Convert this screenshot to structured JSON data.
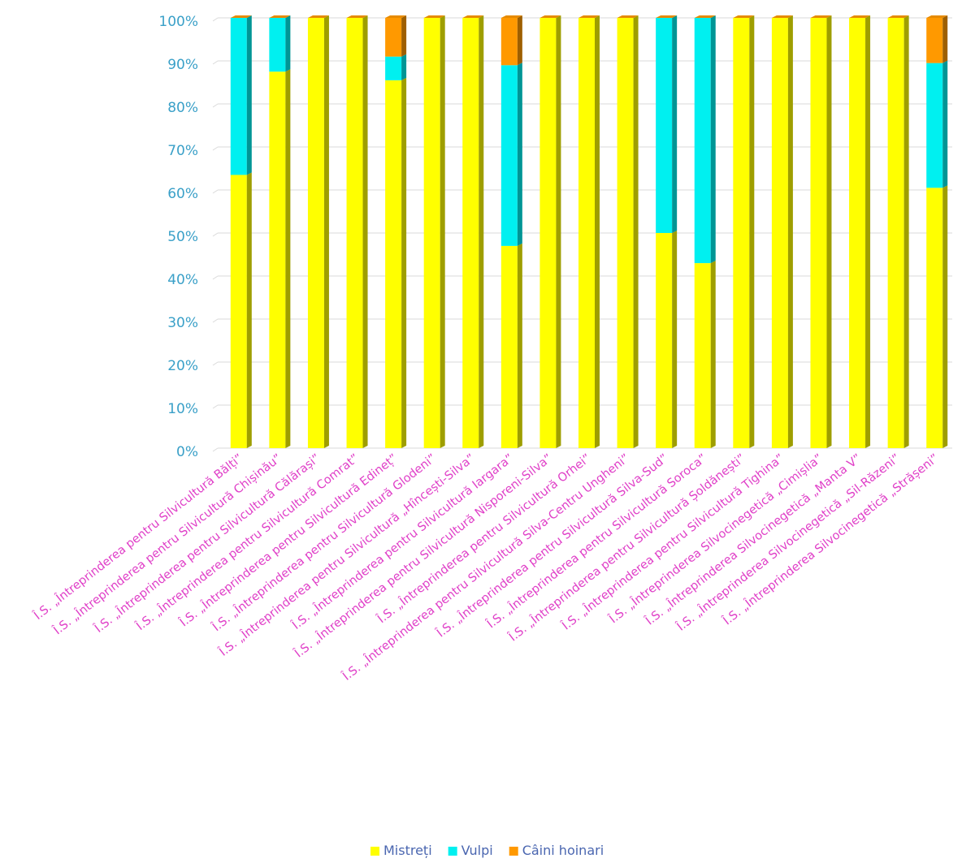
{
  "chart_data": {
    "type": "bar",
    "stacked": "percent",
    "three_d": true,
    "categories": [
      "Î.S. „Întreprinderea pentru Silvicultură Bălți”",
      "Î.S. „Întreprinderea pentru Silvicultură Chișinău”",
      "Î.S. „Întreprinderea pentru Silvicultură Călărași”",
      "Î.S. „Întreprinderea pentru Silvicultură Comrat”",
      "Î.S. „Întreprinderea pentru Silvicultură Edineț”",
      "Î.S. „Întreprinderea pentru Silvicultură Glodeni”",
      "Î.S. „Întreprinderea pentru Silvicultură „Hîncești-Silva”",
      "Î.S. „Întreprinderea pentru Silvicultură Iargara”",
      "Î.S. „Întreprinderea pentru Silvicultură Nisporeni-Silva”",
      "Î.S. „Întreprinderea pentru Silvicultură Orhei”",
      "Î.S. „Întreprinderea pentru Silvicultură Silva-Centru Ungheni”",
      "Î.S. „Întreprinderea pentru Silvicultură Silva-Sud”",
      "Î.S. „Întreprinderea pentru Silvicultură Soroca”",
      "Î.S. „Întreprinderea pentru Silvicultură Șoldănești”",
      "Î.S. „Întreprinderea pentru Silvicultură Tighina”",
      "Î.S. „Întreprinderea Silvocinegetică „Cimișlia”",
      "Î.S. „Întreprinderea Silvocinegetică „Manta V”",
      "Î.S. „Întreprinderea Silvocinegetică „Sil-Răzeni”",
      "Î.S. „Întreprinderea Silvocinegetică „Strășeni”"
    ],
    "series": [
      {
        "name": "Mistreți",
        "color": "#ffff00",
        "values": [
          63.5,
          87.5,
          100,
          100,
          85.5,
          100,
          100,
          47,
          100,
          100,
          100,
          50,
          43,
          100,
          100,
          100,
          100,
          100,
          60.5
        ]
      },
      {
        "name": "Vulpi",
        "color": "#00f0f0",
        "values": [
          36.5,
          12.5,
          0,
          0,
          5.5,
          0,
          0,
          42,
          0,
          0,
          0,
          50,
          57,
          0,
          0,
          0,
          0,
          0,
          29
        ]
      },
      {
        "name": "Câini hoinari",
        "color": "#ff9900",
        "values": [
          0,
          0,
          0,
          0,
          9,
          0,
          0,
          11,
          0,
          0,
          0,
          0,
          0,
          0,
          0,
          0,
          0,
          0,
          10.5
        ]
      }
    ],
    "y_ticks": [
      "0%",
      "10%",
      "20%",
      "30%",
      "40%",
      "50%",
      "60%",
      "70%",
      "80%",
      "90%",
      "100%"
    ],
    "ylim": [
      0,
      100
    ],
    "grid": true,
    "legend": "bottom"
  }
}
